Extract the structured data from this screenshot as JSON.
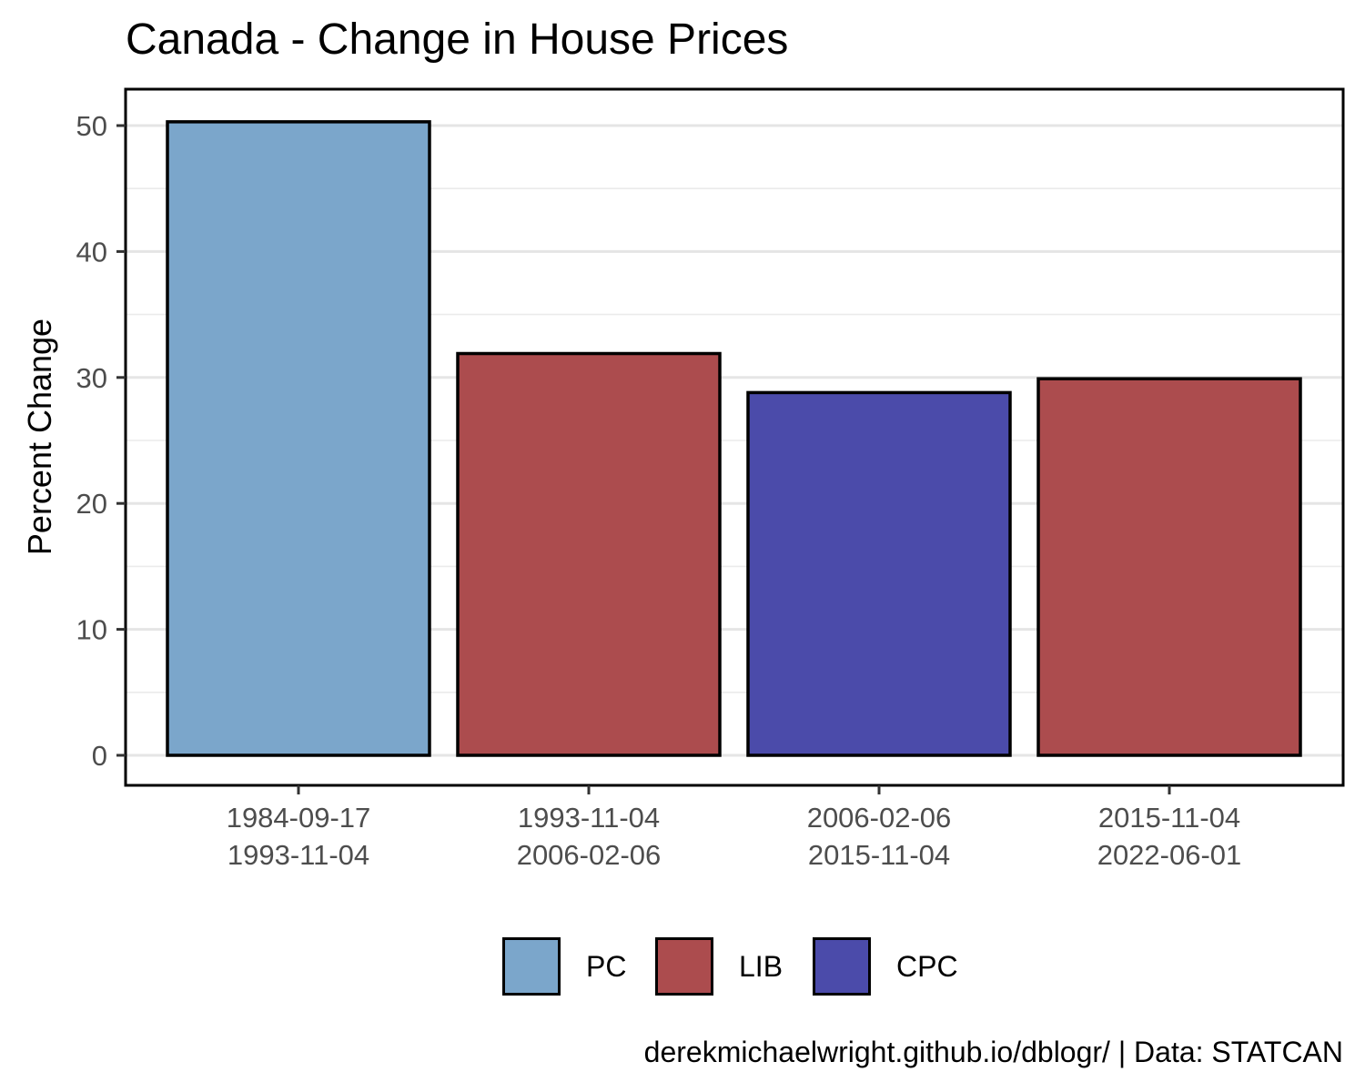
{
  "chart_data": {
    "type": "bar",
    "title": "Canada - Change in House Prices",
    "xlabel": "",
    "ylabel": "Percent Change",
    "ylim": [
      -2.4,
      52.9
    ],
    "yticks": [
      0,
      10,
      20,
      30,
      40,
      50
    ],
    "grid": true,
    "legend_position": "bottom",
    "categories": [
      [
        "1984-09-17",
        "1993-11-04"
      ],
      [
        "1993-11-04",
        "2006-02-06"
      ],
      [
        "2006-02-06",
        "2015-11-04"
      ],
      [
        "2015-11-04",
        "2022-06-01"
      ]
    ],
    "values": [
      50.3,
      31.9,
      28.8,
      29.9
    ],
    "groups": [
      "PC",
      "LIB",
      "CPC",
      "LIB"
    ],
    "legend": [
      {
        "name": "PC",
        "color": "#7BA6CB"
      },
      {
        "name": "LIB",
        "color": "#AC4C4E"
      },
      {
        "name": "CPC",
        "color": "#4B4BAA"
      }
    ],
    "caption": "derekmichaelwright.github.io/dblogr/ | Data: STATCAN"
  }
}
